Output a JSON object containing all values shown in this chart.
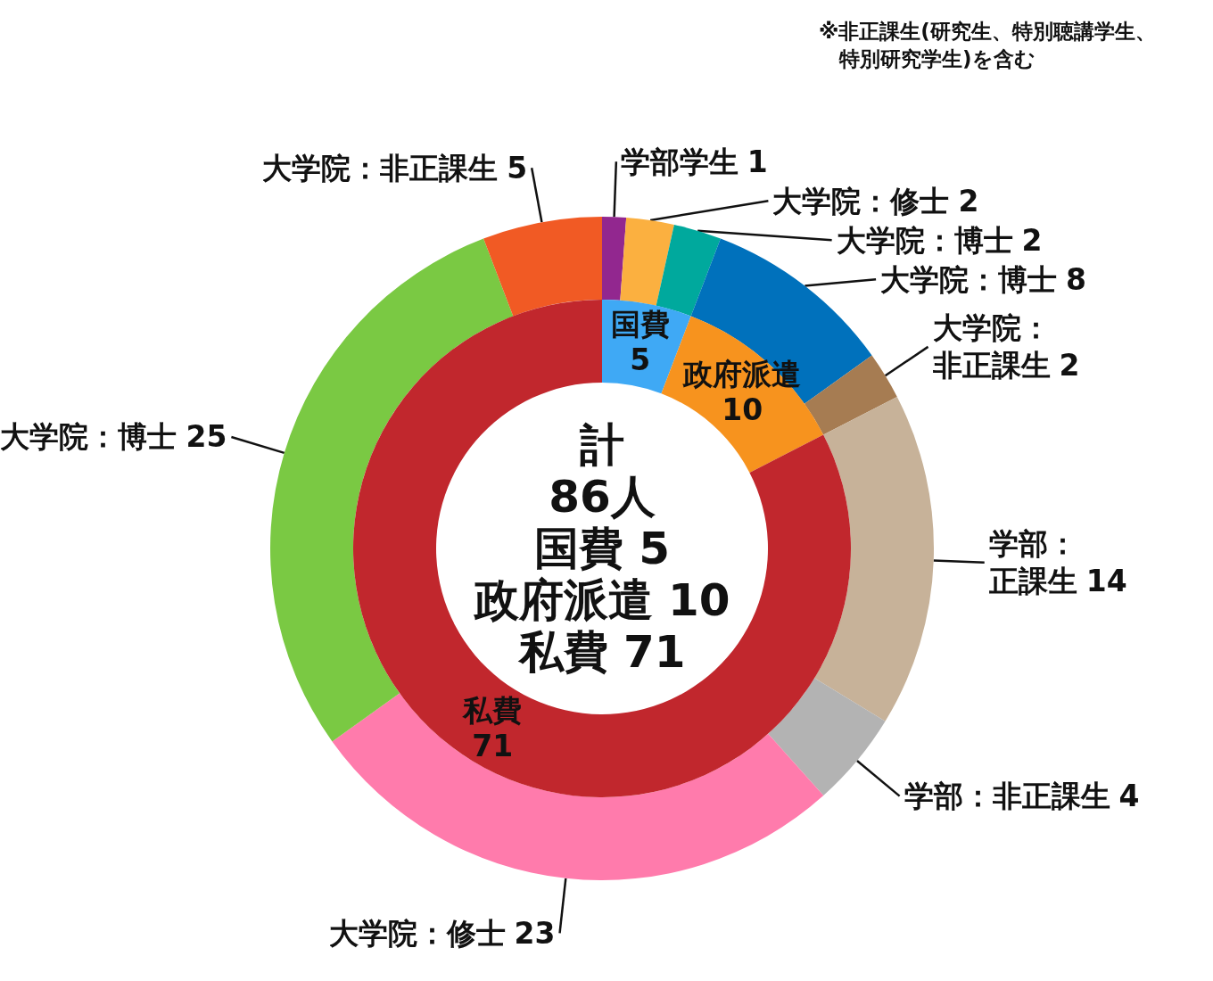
{
  "chart_data": [
    {
      "type": "donut",
      "data_labels": true,
      "categories": [
        "国費",
        "政府派遣",
        "私費"
      ],
      "values": [
        5,
        10,
        71
      ],
      "colors": [
        "#3fa9f5",
        "#f7931e",
        "#c1272d"
      ],
      "annotations": [
        "計",
        "86人",
        "国費 5",
        "政府派遣 10",
        "私費 71"
      ]
    },
    {
      "type": "donut",
      "data_labels": true,
      "categories": [
        "学部学生",
        "大学院：修士",
        "大学院：博士",
        "大学院：博士",
        "大学院：非正課生",
        "学部：正課生",
        "学部：非正課生",
        "大学院：修士",
        "大学院：博士",
        "大学院：非正課生"
      ],
      "values": [
        1,
        2,
        2,
        8,
        2,
        14,
        4,
        23,
        25,
        5
      ],
      "colors": [
        "#92278f",
        "#fbb040",
        "#00a99d",
        "#0071bc",
        "#a67c52",
        "#c7b299",
        "#b3b3b3",
        "#ff7bac",
        "#7ac943",
        "#f15a24"
      ],
      "annotations": [
        "※非正課生(研究生、特別聴講学生、特別研究学生)を含む"
      ]
    }
  ]
}
